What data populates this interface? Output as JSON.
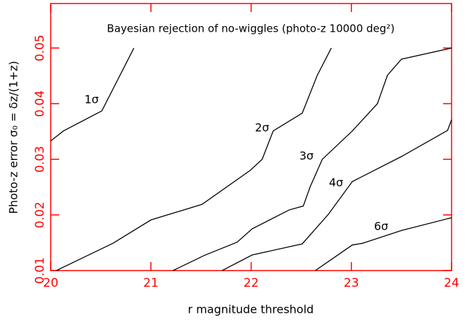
{
  "chart_data": {
    "type": "line",
    "title": "Bayesian rejection of no-wiggles (photo-z 10000 deg²)",
    "x_label": "r magnitude threshold",
    "y_label": "Photo-z error σ₀ = δz/(1+z)",
    "xlim": [
      20,
      24
    ],
    "xticks": [
      20,
      21,
      22,
      23,
      24
    ],
    "ylim": [
      0.01,
      0.058
    ],
    "yticks": [
      0.01,
      0.02,
      0.03,
      0.04,
      0.05
    ],
    "axis_color": "#ff0000",
    "series": [
      {
        "name": "1σ",
        "color": "#000000",
        "x": [
          20,
          20.127,
          20.51,
          20.83
        ],
        "values": [
          0.0333,
          0.0351,
          0.0387,
          0.05
        ]
      },
      {
        "name": "2σ",
        "color": "#000000",
        "x": [
          20.056,
          20.62,
          21.0,
          21.51,
          21.99,
          22.11,
          22.22,
          22.51,
          22.66,
          22.8
        ],
        "values": [
          0.01,
          0.0149,
          0.0191,
          0.0219,
          0.028,
          0.03,
          0.0351,
          0.0383,
          0.0451,
          0.05
        ]
      },
      {
        "name": "3σ",
        "color": "#000000",
        "x": [
          21.22,
          21.53,
          21.86,
          22.01,
          22.38,
          22.52,
          22.59,
          22.71,
          23.01,
          23.26,
          23.36,
          23.5,
          24
        ],
        "values": [
          0.01,
          0.0127,
          0.0151,
          0.0175,
          0.0209,
          0.0216,
          0.0251,
          0.03,
          0.0351,
          0.04,
          0.0451,
          0.048,
          0.05
        ]
      },
      {
        "name": "4σ",
        "color": "#000000",
        "x": [
          21.71,
          22.01,
          22.51,
          22.77,
          23.01,
          23.5,
          23.96,
          24
        ],
        "values": [
          0.01,
          0.0128,
          0.0148,
          0.0201,
          0.026,
          0.0305,
          0.0352,
          0.0371
        ]
      },
      {
        "name": "6σ",
        "color": "#000000",
        "x": [
          22.64,
          23.01,
          23.11,
          23.5,
          24
        ],
        "values": [
          0.01,
          0.0146,
          0.0149,
          0.0172,
          0.0195
        ]
      }
    ]
  }
}
